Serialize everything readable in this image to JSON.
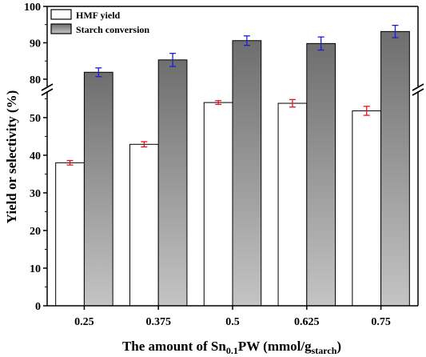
{
  "chart_data": {
    "type": "bar",
    "categories": [
      "0.25",
      "0.375",
      "0.5",
      "0.625",
      "0.75"
    ],
    "series": [
      {
        "name": "HMF yield",
        "values": [
          38.0,
          42.9,
          54.0,
          53.8,
          51.8
        ],
        "errors": [
          0.6,
          0.7,
          0.5,
          1.0,
          1.2
        ],
        "error_color": "#e8141c",
        "fill": "white"
      },
      {
        "name": "Starch conversion",
        "values": [
          81.9,
          85.3,
          90.6,
          89.8,
          93.1
        ],
        "errors": [
          1.2,
          1.8,
          1.3,
          1.8,
          1.7
        ],
        "error_color": "#1b1bd9",
        "fill": "gray-gradient"
      }
    ],
    "xlabel_main": "The amount of Sn",
    "xlabel_sub1": "0.1",
    "xlabel_mid": "PW (mmol/g",
    "xlabel_sub2": "starch",
    "xlabel_end": ")",
    "ylabel": "Yield or selectivity (%)",
    "yaxis_lower": {
      "range": [
        0,
        57
      ],
      "ticks": [
        "0",
        "10",
        "20",
        "30",
        "40",
        "50"
      ]
    },
    "yaxis_upper": {
      "range": [
        78,
        100
      ],
      "ticks": [
        "80",
        "90",
        "100"
      ]
    },
    "axis_break": true,
    "legend_position": "top-left",
    "grid": false
  }
}
